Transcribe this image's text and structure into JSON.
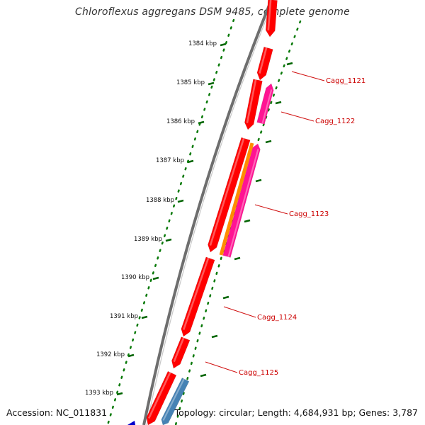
{
  "title": "Chloroflexus aggregans DSM 9485, complete genome",
  "footer": {
    "accession": "Accession: NC_011831",
    "summary": "Topology: circular; Length: 4,684,931 bp; Genes: 3,787"
  },
  "ticks": [
    {
      "label": "1384 kbp"
    },
    {
      "label": "1385 kbp"
    },
    {
      "label": "1386 kbp"
    },
    {
      "label": "1387 kbp"
    },
    {
      "label": "1388 kbp"
    },
    {
      "label": "1389 kbp"
    },
    {
      "label": "1390 kbp"
    },
    {
      "label": "1391 kbp"
    },
    {
      "label": "1392 kbp"
    },
    {
      "label": "1393 kbp"
    }
  ],
  "gene_labels": [
    {
      "text": "Cagg_1121"
    },
    {
      "text": "Cagg_1122"
    },
    {
      "text": "Cagg_1123"
    },
    {
      "text": "Cagg_1124"
    },
    {
      "text": "Cagg_1125"
    }
  ],
  "colors": {
    "gene_red": "#ff0000",
    "gene_magenta": "#ff1493",
    "gene_orange": "#ff8c00",
    "gene_steelblue": "#4682b4",
    "gene_blue": "#0000cd",
    "backbone": "#808080",
    "tick_green": "#006400",
    "label_red": "#cc0000"
  }
}
